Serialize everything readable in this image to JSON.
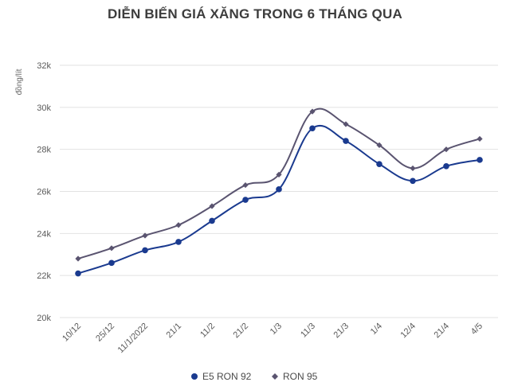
{
  "chart_data": {
    "type": "line",
    "title": "DIỄN BIẾN GIÁ XĂNG TRONG 6 THÁNG QUA",
    "ylabel": "đồng/lít",
    "xlabel": "",
    "categories": [
      "10/12",
      "25/12",
      "11/1/2022",
      "21/1",
      "11/2",
      "21/2",
      "1/3",
      "11/3",
      "21/3",
      "1/4",
      "12/4",
      "21/4",
      "4/5"
    ],
    "y_ticks": [
      "20k",
      "22k",
      "24k",
      "26k",
      "28k",
      "30k",
      "32k"
    ],
    "ylim": [
      20000,
      32000
    ],
    "grid": true,
    "legend_position": "bottom",
    "series": [
      {
        "name": "E5 RON 92",
        "color": "#1a3a8f",
        "marker": "circle",
        "values": [
          22100,
          22600,
          23200,
          23600,
          24600,
          25600,
          26100,
          29000,
          28400,
          27300,
          26500,
          27200,
          27500
        ]
      },
      {
        "name": "RON 95",
        "color": "#5a5470",
        "marker": "diamond",
        "values": [
          22800,
          23300,
          23900,
          24400,
          25300,
          26300,
          26800,
          29800,
          29200,
          28200,
          27100,
          28000,
          28500
        ]
      }
    ]
  }
}
